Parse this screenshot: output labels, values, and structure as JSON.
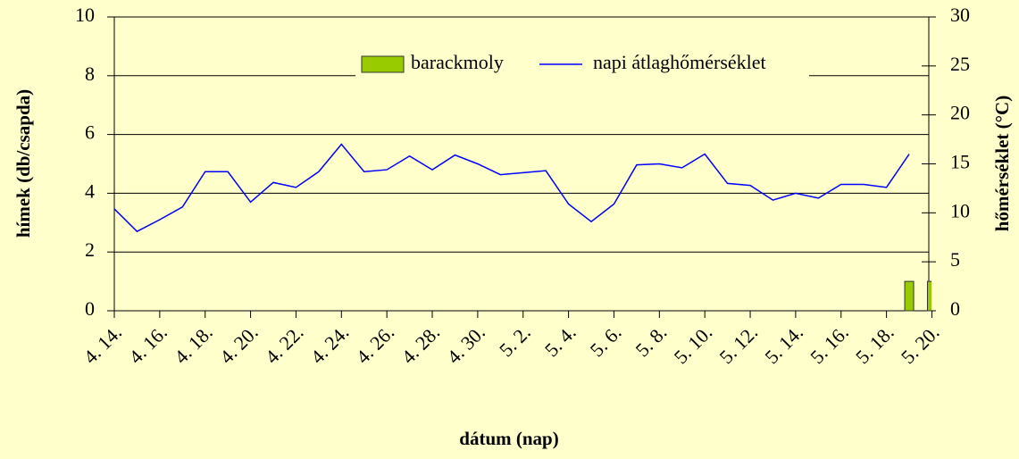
{
  "chart_data": {
    "type": "bar-line",
    "x_label": "dátum (nap)",
    "y_label": "hímek (db/csapda)",
    "y2_label": "hőmérséklet (°C)",
    "categories": [
      "4. 14.",
      null,
      "4. 16.",
      null,
      "4. 18.",
      null,
      "4. 20.",
      null,
      "4. 22.",
      null,
      "4. 24.",
      null,
      "4. 26.",
      null,
      "4. 28.",
      null,
      "4. 30.",
      null,
      "5. 2.",
      null,
      "5. 4.",
      null,
      "5. 6.",
      null,
      "5. 8.",
      null,
      "5. 10.",
      null,
      "5. 12.",
      null,
      "5. 14.",
      null,
      "5. 16.",
      null,
      "5. 18.",
      null,
      "5. 20."
    ],
    "series": [
      {
        "name": "barackmoly",
        "type": "bar",
        "color": "#99cc00",
        "values": [
          0,
          0,
          0,
          0,
          0,
          0,
          0,
          0,
          0,
          0,
          0,
          0,
          0,
          0,
          0,
          0,
          0,
          0,
          0,
          0,
          0,
          0,
          0,
          0,
          0,
          0,
          0,
          0,
          0,
          0,
          0,
          0,
          0,
          0,
          0,
          1,
          1
        ]
      },
      {
        "name": "napi átlaghőmérséklet",
        "type": "line",
        "axis": "y2",
        "color": "#0000ff",
        "values": [
          10.4,
          8.1,
          9.3,
          10.6,
          14.2,
          14.2,
          11.1,
          13.1,
          12.6,
          14.2,
          17.0,
          14.2,
          14.4,
          15.8,
          14.4,
          15.9,
          15.0,
          13.9,
          14.1,
          14.3,
          10.9,
          9.1,
          10.9,
          14.9,
          15.0,
          14.6,
          16.0,
          13.0,
          12.8,
          11.3,
          12.0,
          11.5,
          12.9,
          12.9,
          12.6,
          16.0,
          null
        ]
      }
    ],
    "ylim": [
      0,
      10
    ],
    "yticks": [
      0,
      2,
      4,
      6,
      8,
      10
    ],
    "y2lim": [
      0,
      30
    ],
    "y2ticks": [
      0,
      5,
      10,
      15,
      20,
      25,
      30
    ],
    "grid": true,
    "legend": "top"
  }
}
